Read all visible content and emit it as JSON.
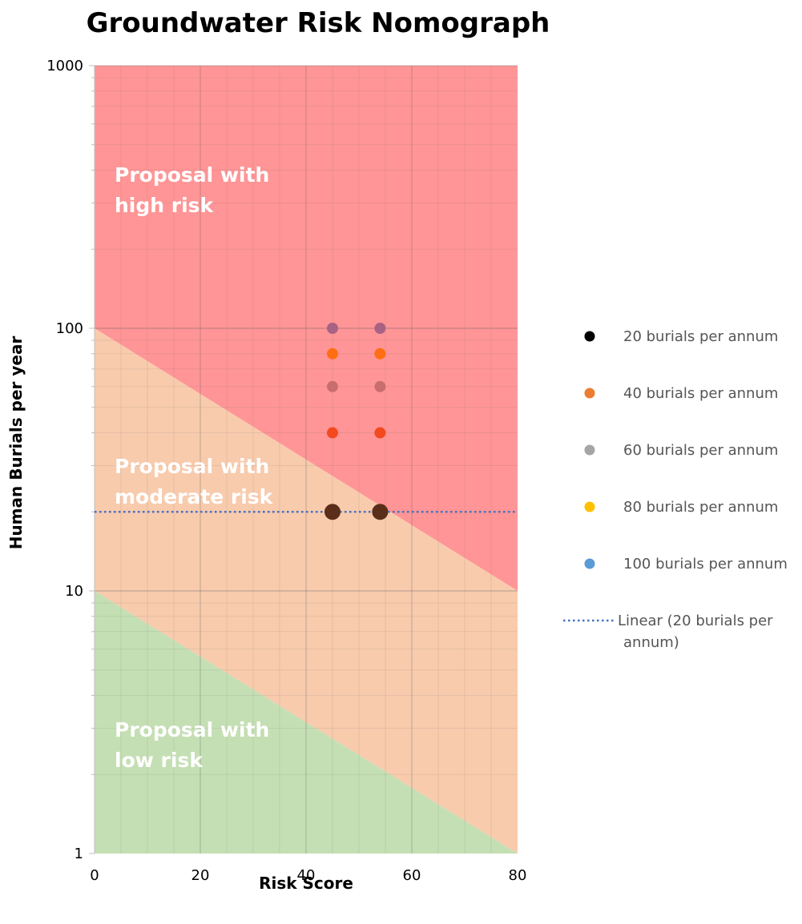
{
  "chart_data": {
    "type": "scatter",
    "title": "Groundwater Risk Nomograph",
    "xlabel": "Risk Score",
    "ylabel": "Human Burials per year",
    "xlim": [
      0,
      80
    ],
    "ylim": [
      1,
      1000
    ],
    "yscale": "log",
    "x_ticks": [
      0,
      20,
      40,
      60,
      80
    ],
    "x_tick_labels": [
      "0",
      "20",
      "40",
      "60",
      "80"
    ],
    "y_ticks": [
      1,
      10,
      100,
      1000
    ],
    "y_tick_labels": [
      "1",
      "10",
      "100",
      "1000"
    ],
    "grid": true,
    "legend_position": "right",
    "zones": [
      {
        "name": "high",
        "label_lines": [
          "Proposal with",
          "high risk"
        ],
        "color": "#FF9596",
        "boundary_from": [
          [
            0,
            100
          ],
          [
            80,
            10
          ]
        ],
        "boundary_to": [
          [
            0,
            1000
          ],
          [
            80,
            1000
          ]
        ]
      },
      {
        "name": "moderate",
        "label_lines": [
          "Proposal with",
          "moderate risk"
        ],
        "color": "#F8CBAD",
        "boundary_from": [
          [
            0,
            10
          ],
          [
            80,
            1
          ]
        ],
        "boundary_to": [
          [
            0,
            100
          ],
          [
            80,
            10
          ]
        ]
      },
      {
        "name": "low",
        "label_lines": [
          "Proposal with",
          "low risk"
        ],
        "color": "#C5DFB4",
        "boundary_from": [
          [
            0,
            1
          ],
          [
            80,
            1
          ]
        ],
        "boundary_to": [
          [
            0,
            10
          ],
          [
            80,
            1
          ]
        ]
      }
    ],
    "series": [
      {
        "name": "20 burials per annum",
        "legend_color": "#000000",
        "plot_color": "#5A2E18",
        "size": "large",
        "points": [
          [
            45,
            20
          ],
          [
            54,
            20
          ]
        ]
      },
      {
        "name": "40 burials per annum",
        "legend_color": "#ED7D31",
        "plot_color": "#F24A1E",
        "size": "small",
        "points": [
          [
            45,
            40
          ],
          [
            54,
            40
          ]
        ]
      },
      {
        "name": "60 burials per annum",
        "legend_color": "#A5A5A5",
        "plot_color": "#C86E6E",
        "size": "small",
        "points": [
          [
            45,
            60
          ],
          [
            54,
            60
          ]
        ]
      },
      {
        "name": "80 burials per annum",
        "legend_color": "#FFC000",
        "plot_color": "#FF6E12",
        "size": "small",
        "points": [
          [
            45,
            80
          ],
          [
            54,
            80
          ]
        ]
      },
      {
        "name": "100 burials per annum",
        "legend_color": "#5B9BD5",
        "plot_color": "#A86283",
        "size": "small",
        "points": [
          [
            45,
            100
          ],
          [
            54,
            100
          ]
        ]
      }
    ],
    "trendline": {
      "label_lines": [
        "Linear (20 burials per",
        "annum)"
      ],
      "color": "#4472C4",
      "style": "dotted",
      "x": [
        0,
        80
      ],
      "y": [
        20,
        20
      ]
    }
  }
}
